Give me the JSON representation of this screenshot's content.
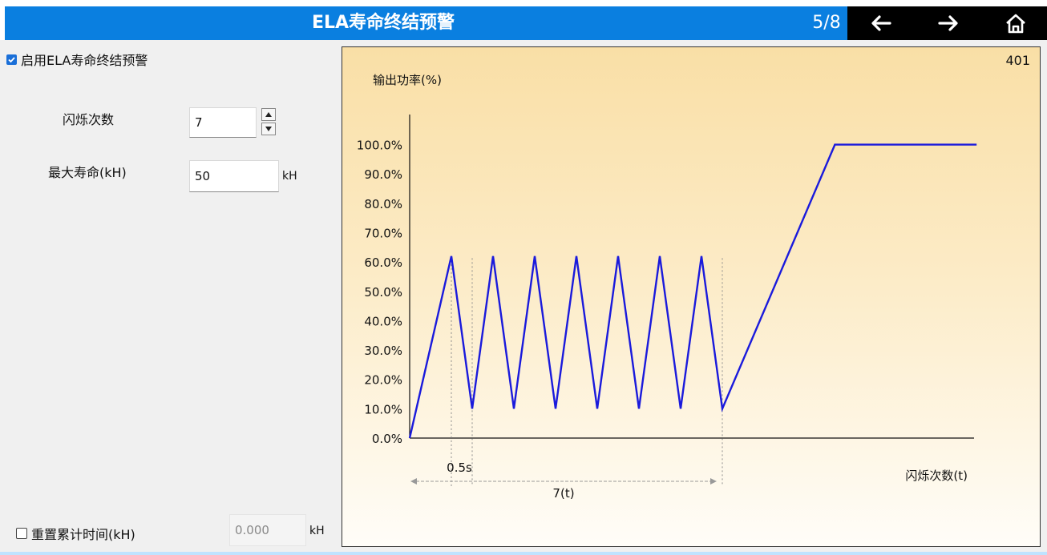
{
  "header": {
    "title": "ELA寿命终结预警",
    "page_indicator": "5/8",
    "back_icon": "arrow-left-icon",
    "forward_icon": "arrow-right-icon",
    "home_icon": "home-icon"
  },
  "form": {
    "enable_label": "启用ELA寿命终结预警",
    "enable_checked": true,
    "flash_count_label": "闪烁次数",
    "flash_count_value": "7",
    "max_life_label": "最大寿命(kH)",
    "max_life_value": "50",
    "max_life_unit": "kH",
    "reset_label": "重置累计时间(kH)",
    "reset_checked": false,
    "reset_value": "0.000",
    "reset_unit": "kH"
  },
  "chart_data": {
    "type": "line",
    "corner_label": "401",
    "ylabel": "输出功率(%)",
    "xlabel": "闪烁次数(t)",
    "y_ticks": [
      "100.0%",
      "90.0%",
      "80.0%",
      "70.0%",
      "60.0%",
      "50.0%",
      "40.0%",
      "30.0%",
      "20.0%",
      "10.0%",
      "0.0%"
    ],
    "ylim": [
      0,
      100
    ],
    "annotation_flash_interval": "0.5s",
    "annotation_flash_total": "7(t)",
    "line_color": "#1a1adc",
    "series": [
      {
        "values": [
          [
            0,
            0
          ],
          [
            1,
            62
          ],
          [
            1.5,
            10
          ],
          [
            2,
            62
          ],
          [
            2.5,
            10
          ],
          [
            3,
            62
          ],
          [
            3.5,
            10
          ],
          [
            4,
            62
          ],
          [
            4.5,
            10
          ],
          [
            5,
            62
          ],
          [
            5.5,
            10
          ],
          [
            6,
            62
          ],
          [
            6.5,
            10
          ],
          [
            7,
            62
          ],
          [
            7.5,
            10
          ],
          [
            10.2,
            100
          ],
          [
            13.6,
            100
          ]
        ]
      }
    ]
  }
}
